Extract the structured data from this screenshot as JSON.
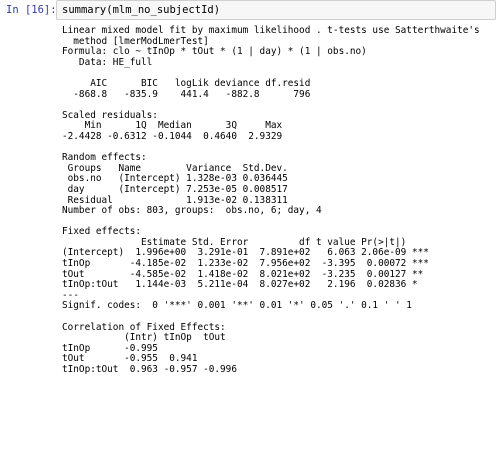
{
  "cell": {
    "prompt": "In [16]:",
    "code": "summary(mlm_no_subjectId)",
    "output_lines": [
      "Linear mixed model fit by maximum likelihood . t-tests use Satterthwaite's",
      "  method [lmerModLmerTest]",
      "Formula: clo ~ tInOp * tOut * (1 | day) * (1 | obs.no)",
      "   Data: HE_full",
      "",
      "     AIC      BIC   logLik deviance df.resid",
      "  -868.8   -835.9    441.4   -882.8      796",
      "",
      "Scaled residuals:",
      "    Min      1Q  Median      3Q     Max",
      "-2.4428 -0.6312 -0.1044  0.4640  2.9329",
      "",
      "Random effects:",
      " Groups   Name        Variance  Std.Dev.",
      " obs.no   (Intercept) 1.328e-03 0.036445",
      " day      (Intercept) 7.253e-05 0.008517",
      " Residual             1.913e-02 0.138311",
      "Number of obs: 803, groups:  obs.no, 6; day, 4",
      "",
      "Fixed effects:",
      "              Estimate Std. Error         df t value Pr(>|t|)",
      "(Intercept)  1.996e+00  3.291e-01  7.891e+02   6.063 2.06e-09 ***",
      "tInOp       -4.185e-02  1.233e-02  7.956e+02  -3.395  0.00072 ***",
      "tOut        -4.585e-02  1.418e-02  8.021e+02  -3.235  0.00127 **",
      "tInOp:tOut   1.144e-03  5.211e-04  8.027e+02   2.196  0.02836 *",
      "---",
      "Signif. codes:  0 '***' 0.001 '**' 0.01 '*' 0.05 '.' 0.1 ' ' 1",
      "",
      "Correlation of Fixed Effects:",
      "           (Intr) tInOp  tOut",
      "tInOp      -0.995",
      "tOut       -0.955  0.941",
      "tInOp:tOut  0.963 -0.957 -0.996"
    ]
  }
}
